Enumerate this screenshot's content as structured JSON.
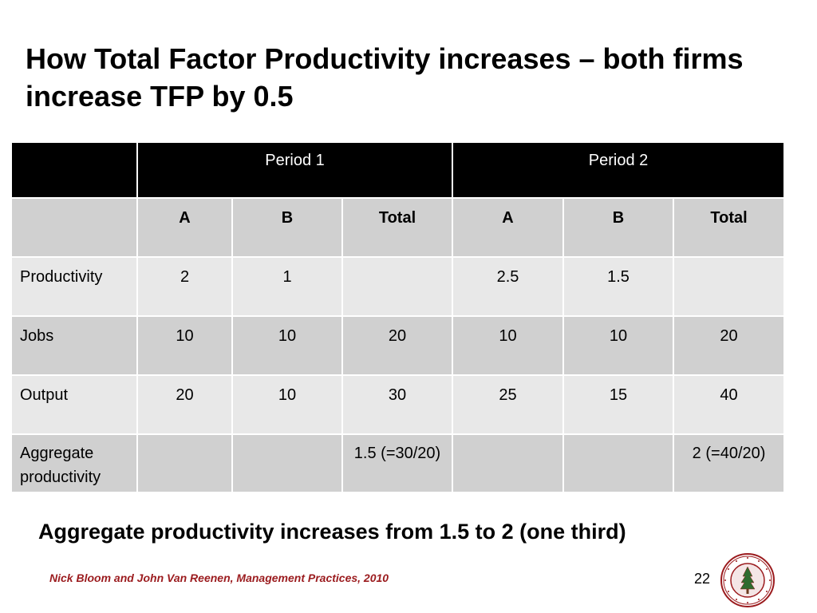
{
  "slide": {
    "title": "How Total Factor Productivity increases – both firms increase TFP by 0.5",
    "conclusion": "Aggregate productivity increases from 1.5 to 2 (one third)",
    "footer": "Nick Bloom and John Van Reenen, Management Practices, 2010",
    "page_number": "22",
    "seal_text": "LELAND STANFORD JUNIOR UNIVERSITY 1891",
    "accent_color": "#9b1b1e"
  },
  "table": {
    "period_headers": [
      "Period 1",
      "Period 2"
    ],
    "sub_headers": [
      "A",
      "B",
      "Total",
      "A",
      "B",
      "Total"
    ],
    "rows": [
      {
        "label": "Productivity",
        "cells": [
          "2",
          "1",
          "",
          "2.5",
          "1.5",
          ""
        ]
      },
      {
        "label": "Jobs",
        "cells": [
          "10",
          "10",
          "20",
          "10",
          "10",
          "20"
        ]
      },
      {
        "label": "Output",
        "cells": [
          "20",
          "10",
          "30",
          "25",
          "15",
          "40"
        ]
      },
      {
        "label": "Aggregate productivity",
        "cells": [
          "",
          "",
          "1.5 (=30/20)",
          "",
          "",
          "2 (=40/20)"
        ]
      }
    ]
  }
}
